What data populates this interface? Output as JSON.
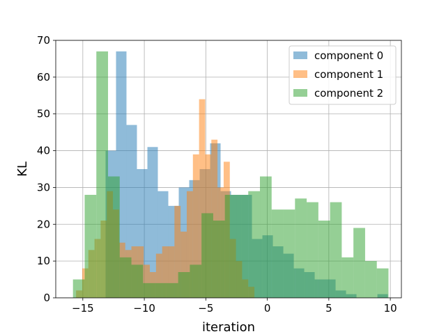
{
  "chart_data": {
    "type": "bar",
    "subtype": "overlaid-histogram",
    "xlabel": "iteration",
    "ylabel": "KL",
    "xlim": [
      -17.2,
      10.9
    ],
    "ylim": [
      0,
      70
    ],
    "xticks": [
      -15,
      -10,
      -5,
      0,
      5,
      10
    ],
    "yticks": [
      0,
      10,
      20,
      30,
      40,
      50,
      60,
      70
    ],
    "grid": true,
    "legend_position": "top-right",
    "series": [
      {
        "name": "component 0",
        "color": "#1f77b4",
        "alpha": 0.5,
        "bins": [
          {
            "x0": -13.15,
            "x1": -12.3,
            "count": 40
          },
          {
            "x0": -12.3,
            "x1": -11.45,
            "count": 67
          },
          {
            "x0": -11.45,
            "x1": -10.6,
            "count": 47
          },
          {
            "x0": -10.6,
            "x1": -9.75,
            "count": 35
          },
          {
            "x0": -9.75,
            "x1": -8.9,
            "count": 41
          },
          {
            "x0": -8.9,
            "x1": -8.05,
            "count": 29
          },
          {
            "x0": -8.05,
            "x1": -7.2,
            "count": 25
          },
          {
            "x0": -7.2,
            "x1": -6.35,
            "count": 30
          },
          {
            "x0": -6.35,
            "x1": -5.5,
            "count": 32
          },
          {
            "x0": -5.5,
            "x1": -4.65,
            "count": 35
          },
          {
            "x0": -4.65,
            "x1": -3.8,
            "count": 42
          },
          {
            "x0": -3.8,
            "x1": -2.95,
            "count": 29
          },
          {
            "x0": -2.95,
            "x1": -2.1,
            "count": 28
          },
          {
            "x0": -2.1,
            "x1": -1.25,
            "count": 28
          },
          {
            "x0": -1.25,
            "x1": -0.4,
            "count": 16
          },
          {
            "x0": -0.4,
            "x1": 0.45,
            "count": 17
          },
          {
            "x0": 0.45,
            "x1": 1.3,
            "count": 14
          },
          {
            "x0": 1.3,
            "x1": 2.15,
            "count": 12
          },
          {
            "x0": 2.15,
            "x1": 3.0,
            "count": 8
          },
          {
            "x0": 3.0,
            "x1": 3.85,
            "count": 7
          },
          {
            "x0": 3.85,
            "x1": 4.7,
            "count": 5
          },
          {
            "x0": 4.7,
            "x1": 5.55,
            "count": 5
          },
          {
            "x0": 5.55,
            "x1": 6.4,
            "count": 2
          },
          {
            "x0": 6.4,
            "x1": 7.25,
            "count": 1
          },
          {
            "x0": 7.25,
            "x1": 8.1,
            "count": 0
          },
          {
            "x0": 8.1,
            "x1": 8.95,
            "count": 0
          },
          {
            "x0": 8.95,
            "x1": 9.8,
            "count": 1
          }
        ]
      },
      {
        "name": "component 1",
        "color": "#ff7f0e",
        "alpha": 0.5,
        "bins": [
          {
            "x0": -15.55,
            "x1": -15.05,
            "count": 2
          },
          {
            "x0": -15.05,
            "x1": -14.55,
            "count": 8
          },
          {
            "x0": -14.55,
            "x1": -14.05,
            "count": 13
          },
          {
            "x0": -14.05,
            "x1": -13.55,
            "count": 16
          },
          {
            "x0": -13.55,
            "x1": -13.05,
            "count": 21
          },
          {
            "x0": -13.05,
            "x1": -12.55,
            "count": 29
          },
          {
            "x0": -12.55,
            "x1": -12.05,
            "count": 24
          },
          {
            "x0": -12.05,
            "x1": -11.55,
            "count": 15
          },
          {
            "x0": -11.55,
            "x1": -11.05,
            "count": 13
          },
          {
            "x0": -11.05,
            "x1": -10.55,
            "count": 14
          },
          {
            "x0": -10.55,
            "x1": -10.05,
            "count": 14
          },
          {
            "x0": -10.05,
            "x1": -9.55,
            "count": 9
          },
          {
            "x0": -9.55,
            "x1": -9.05,
            "count": 7
          },
          {
            "x0": -9.05,
            "x1": -8.55,
            "count": 12
          },
          {
            "x0": -8.55,
            "x1": -8.05,
            "count": 14
          },
          {
            "x0": -8.05,
            "x1": -7.55,
            "count": 14
          },
          {
            "x0": -7.55,
            "x1": -7.05,
            "count": 25
          },
          {
            "x0": -7.05,
            "x1": -6.55,
            "count": 18
          },
          {
            "x0": -6.55,
            "x1": -6.05,
            "count": 29
          },
          {
            "x0": -6.05,
            "x1": -5.55,
            "count": 39
          },
          {
            "x0": -5.55,
            "x1": -5.05,
            "count": 54
          },
          {
            "x0": -5.05,
            "x1": -4.55,
            "count": 39
          },
          {
            "x0": -4.55,
            "x1": -4.05,
            "count": 43
          },
          {
            "x0": -4.05,
            "x1": -3.55,
            "count": 30
          },
          {
            "x0": -3.55,
            "x1": -3.05,
            "count": 37
          },
          {
            "x0": -3.05,
            "x1": -2.55,
            "count": 16
          },
          {
            "x0": -2.55,
            "x1": -2.05,
            "count": 10
          },
          {
            "x0": -2.05,
            "x1": -1.55,
            "count": 5
          },
          {
            "x0": -1.55,
            "x1": -1.05,
            "count": 3
          }
        ]
      },
      {
        "name": "component 2",
        "color": "#2ca02c",
        "alpha": 0.5,
        "bins": [
          {
            "x0": -15.8,
            "x1": -14.85,
            "count": 5
          },
          {
            "x0": -14.85,
            "x1": -13.9,
            "count": 28
          },
          {
            "x0": -13.9,
            "x1": -12.95,
            "count": 67
          },
          {
            "x0": -12.95,
            "x1": -12.0,
            "count": 33
          },
          {
            "x0": -12.0,
            "x1": -11.05,
            "count": 11
          },
          {
            "x0": -11.05,
            "x1": -10.1,
            "count": 9
          },
          {
            "x0": -10.1,
            "x1": -9.15,
            "count": 4
          },
          {
            "x0": -9.15,
            "x1": -8.2,
            "count": 4
          },
          {
            "x0": -8.2,
            "x1": -7.25,
            "count": 4
          },
          {
            "x0": -7.25,
            "x1": -6.3,
            "count": 7
          },
          {
            "x0": -6.3,
            "x1": -5.35,
            "count": 9
          },
          {
            "x0": -5.35,
            "x1": -4.4,
            "count": 23
          },
          {
            "x0": -4.4,
            "x1": -3.45,
            "count": 21
          },
          {
            "x0": -3.45,
            "x1": -2.5,
            "count": 28
          },
          {
            "x0": -2.5,
            "x1": -1.55,
            "count": 28
          },
          {
            "x0": -1.55,
            "x1": -0.6,
            "count": 29
          },
          {
            "x0": -0.6,
            "x1": 0.35,
            "count": 33
          },
          {
            "x0": 0.35,
            "x1": 1.3,
            "count": 24
          },
          {
            "x0": 1.3,
            "x1": 2.25,
            "count": 24
          },
          {
            "x0": 2.25,
            "x1": 3.2,
            "count": 27
          },
          {
            "x0": 3.2,
            "x1": 4.15,
            "count": 26
          },
          {
            "x0": 4.15,
            "x1": 5.1,
            "count": 21
          },
          {
            "x0": 5.1,
            "x1": 6.05,
            "count": 26
          },
          {
            "x0": 6.05,
            "x1": 7.0,
            "count": 11
          },
          {
            "x0": 7.0,
            "x1": 7.95,
            "count": 19
          },
          {
            "x0": 7.95,
            "x1": 8.9,
            "count": 10
          },
          {
            "x0": 8.9,
            "x1": 9.85,
            "count": 8
          }
        ]
      }
    ]
  }
}
